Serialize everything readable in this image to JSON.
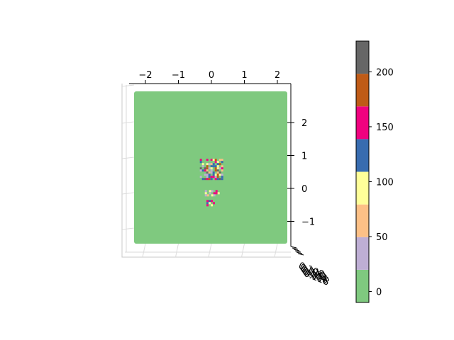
{
  "chart_data": {
    "type": "surface",
    "projection": "3d-top-down",
    "title": "",
    "xlabel": "",
    "ylabel": "",
    "zlabel": "",
    "x_ticks": [
      "−2",
      "−1",
      "0",
      "1",
      "2"
    ],
    "x_tick_values": [
      -2,
      -1,
      0,
      1,
      2
    ],
    "y_ticks": [
      "2",
      "1",
      "0",
      "−1"
    ],
    "y_tick_values": [
      2,
      1,
      0,
      -1
    ],
    "z_ticks": [
      "0.108",
      "0.110",
      "0.112",
      "0.114",
      "0.116",
      "0.118"
    ],
    "xlim": [
      -2.5,
      2.5
    ],
    "ylim": [
      -1.75,
      2.9
    ],
    "surface_color": "#7fc97f",
    "colormap": "Accent",
    "colorbar": {
      "range": [
        -10,
        228
      ],
      "ticks": [
        0,
        50,
        100,
        150,
        200
      ],
      "tick_labels": [
        "0",
        "50",
        "100",
        "150",
        "200"
      ],
      "bands": [
        {
          "from": -10,
          "to": 19.75,
          "color": "#7fc97f"
        },
        {
          "from": 19.75,
          "to": 49.5,
          "color": "#beaed4"
        },
        {
          "from": 49.5,
          "to": 79.25,
          "color": "#fdc086"
        },
        {
          "from": 79.25,
          "to": 109,
          "color": "#ffff99"
        },
        {
          "from": 109,
          "to": 138.75,
          "color": "#386cb0"
        },
        {
          "from": 138.75,
          "to": 168.5,
          "color": "#f0027f"
        },
        {
          "from": 168.5,
          "to": 198.25,
          "color": "#bf5b17"
        },
        {
          "from": 198.25,
          "to": 228,
          "color": "#666666"
        }
      ]
    },
    "patches": [
      {
        "x": [
          -0.35,
          0.3
        ],
        "y": [
          0.3,
          0.9
        ],
        "colors": [
          "#beaed4",
          "#fdc086",
          "#ffff99",
          "#386cb0",
          "#f0027f",
          "#bf5b17",
          "#666666",
          "#7fc97f"
        ]
      },
      {
        "x": [
          -0.2,
          0.25
        ],
        "y": [
          -0.2,
          -0.05
        ],
        "colors": [
          "#f0027f",
          "#ffff99",
          "#beaed4",
          "#fdc086"
        ]
      },
      {
        "x": [
          -0.15,
          0.1
        ],
        "y": [
          -0.5,
          -0.35
        ],
        "colors": [
          "#f0027f",
          "#386cb0",
          "#ffff99"
        ]
      }
    ]
  }
}
